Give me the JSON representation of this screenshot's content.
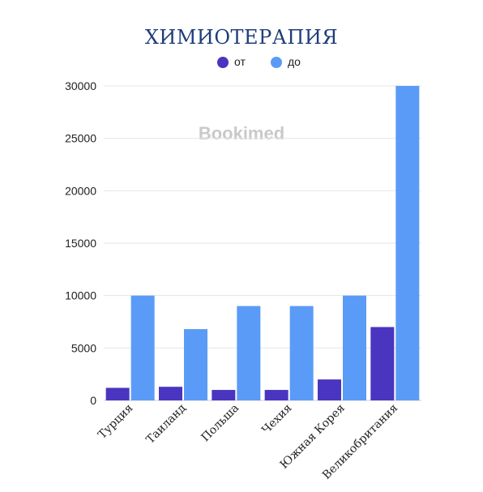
{
  "watermark": "Bookimed",
  "chart_data": {
    "type": "bar",
    "title": "ХИМИОТЕРАПИЯ",
    "xlabel": "",
    "ylabel": "",
    "categories": [
      "Турция",
      "Таиланд",
      "Польша",
      "Чехия",
      "Южная Корея",
      "Великобритания"
    ],
    "series": [
      {
        "name": "от",
        "color": "#4a35c0",
        "values": [
          1200,
          1300,
          1000,
          1000,
          2000,
          7000
        ]
      },
      {
        "name": "до",
        "color": "#5b9bf8",
        "values": [
          10000,
          6800,
          9000,
          9000,
          10000,
          30000
        ]
      }
    ],
    "ylim": [
      0,
      30000
    ],
    "yticks": [
      0,
      5000,
      10000,
      15000,
      20000,
      25000,
      30000
    ],
    "grid": true,
    "legend_position": "top"
  }
}
